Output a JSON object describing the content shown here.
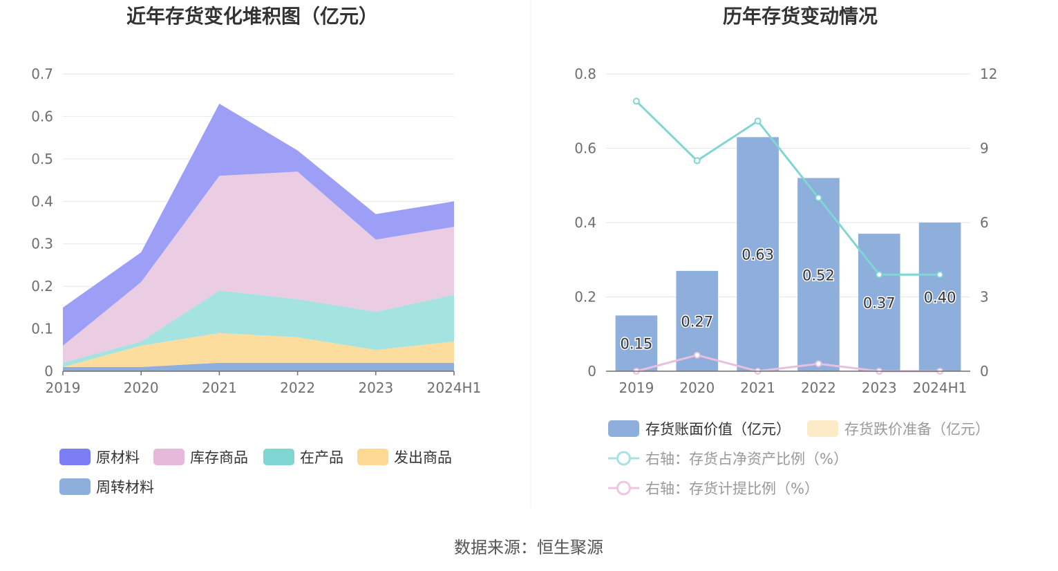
{
  "left_chart": {
    "title": "近年存货变化堆积图（亿元）",
    "chart_data": {
      "type": "area",
      "stacked": true,
      "categories": [
        "2019",
        "2020",
        "2021",
        "2022",
        "2023",
        "2024H1"
      ],
      "ylim": [
        0,
        0.7
      ],
      "y_ticks": [
        "0",
        "0.1",
        "0.2",
        "0.3",
        "0.4",
        "0.5",
        "0.6",
        "0.7"
      ],
      "series": [
        {
          "name": "周转材料",
          "values": [
            0.01,
            0.01,
            0.02,
            0.02,
            0.02,
            0.02
          ],
          "color": "#8eaedc"
        },
        {
          "name": "发出商品",
          "values": [
            0.0,
            0.05,
            0.07,
            0.06,
            0.03,
            0.05
          ],
          "color": "#fddd9e"
        },
        {
          "name": "在产品",
          "values": [
            0.01,
            0.01,
            0.1,
            0.09,
            0.09,
            0.11
          ],
          "color": "#a5e3e0"
        },
        {
          "name": "库存商品",
          "values": [
            0.04,
            0.14,
            0.27,
            0.3,
            0.17,
            0.16
          ],
          "color": "#ebcde3"
        },
        {
          "name": "原材料",
          "values": [
            0.09,
            0.07,
            0.17,
            0.05,
            0.06,
            0.06
          ],
          "color": "#9d9ff6"
        }
      ],
      "legend": [
        {
          "name": "原材料",
          "color": "#7b7ef4"
        },
        {
          "name": "库存商品",
          "color": "#e6b8da"
        },
        {
          "name": "在产品",
          "color": "#80d6d3"
        },
        {
          "name": "发出商品",
          "color": "#fdd892"
        },
        {
          "name": "周转材料",
          "color": "#8eaedc"
        }
      ],
      "legend_position": "bottom"
    }
  },
  "right_chart": {
    "title": "历年存货变动情况",
    "chart_data": {
      "type": "bar",
      "categories": [
        "2019",
        "2020",
        "2021",
        "2022",
        "2023",
        "2024H1"
      ],
      "ylim": [
        0,
        0.8
      ],
      "y_ticks": [
        "0",
        "0.2",
        "0.4",
        "0.6",
        "0.8"
      ],
      "y2lim": [
        0,
        12
      ],
      "y2_ticks": [
        "0",
        "3",
        "6",
        "9",
        "12"
      ],
      "bars": {
        "name": "存货账面价值（亿元）",
        "values": [
          0.15,
          0.27,
          0.63,
          0.52,
          0.37,
          0.4
        ],
        "labels": [
          "0.15",
          "0.27",
          "0.63",
          "0.52",
          "0.37",
          "0.40"
        ],
        "color": "#8eaedc"
      },
      "lines": [
        {
          "name": "右轴：存货占净资产比例（%）",
          "values": [
            10.9,
            8.5,
            10.1,
            7.0,
            3.9,
            3.9
          ],
          "color": "#80d6d3"
        },
        {
          "name": "右轴：存货计提比例（%）",
          "values": [
            0.0,
            0.65,
            0.0,
            0.3,
            0.0,
            0.0
          ],
          "color": "#e9bfe0"
        }
      ],
      "legend": [
        {
          "name": "存货账面价值（亿元）",
          "color": "#8eaedc",
          "kind": "box",
          "active": true
        },
        {
          "name": "存货跌价准备（亿元）",
          "color": "#fdebc8",
          "kind": "box",
          "active": false
        },
        {
          "name": "右轴：存货占净资产比例（%）",
          "color": "#a5e3e0",
          "kind": "line",
          "active": false
        },
        {
          "name": "右轴：存货计提比例（%）",
          "color": "#ecc6e3",
          "kind": "line",
          "active": false
        }
      ],
      "legend_position": "bottom"
    }
  },
  "footer": {
    "source": "数据来源：恒生聚源"
  }
}
